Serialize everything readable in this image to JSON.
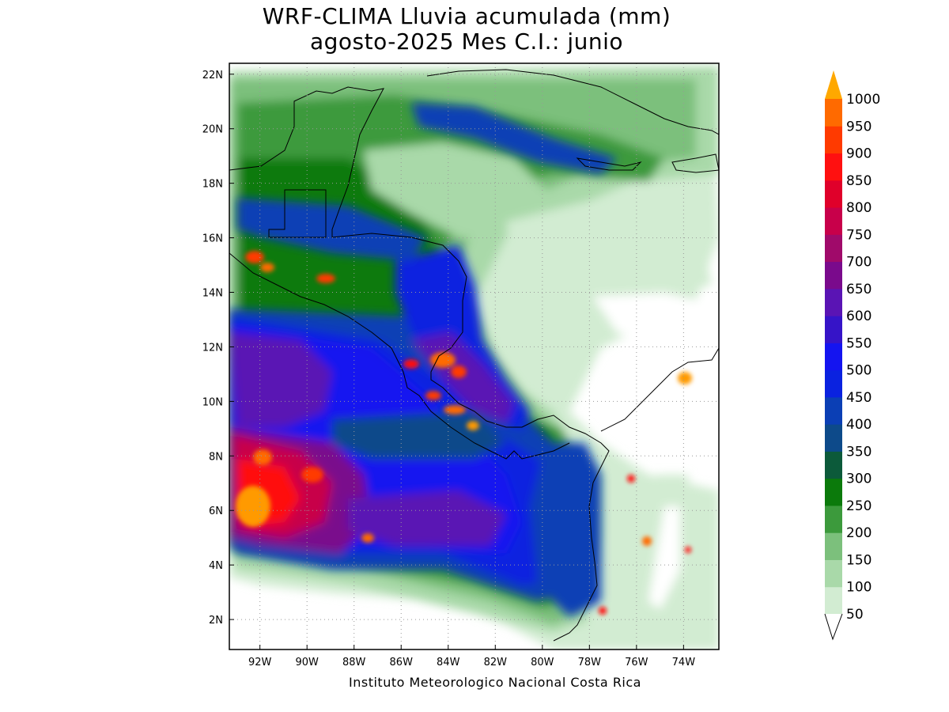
{
  "title": {
    "line1": "WRF-CLIMA Lluvia acumulada (mm)",
    "line2": "agosto-2025 Mes C.I.: junio"
  },
  "credit": "Instituto Meteorologico Nacional Costa Rica",
  "map": {
    "lon_range": [
      -93.3,
      -72.5
    ],
    "lat_range": [
      0.9,
      22.4
    ],
    "lon_ticks": [
      {
        "value": -92,
        "label": "92W"
      },
      {
        "value": -90,
        "label": "90W"
      },
      {
        "value": -88,
        "label": "88W"
      },
      {
        "value": -86,
        "label": "86W"
      },
      {
        "value": -84,
        "label": "84W"
      },
      {
        "value": -82,
        "label": "82W"
      },
      {
        "value": -80,
        "label": "80W"
      },
      {
        "value": -78,
        "label": "78W"
      },
      {
        "value": -76,
        "label": "76W"
      },
      {
        "value": -74,
        "label": "74W"
      }
    ],
    "lat_ticks": [
      {
        "value": 2,
        "label": "2N"
      },
      {
        "value": 4,
        "label": "4N"
      },
      {
        "value": 6,
        "label": "6N"
      },
      {
        "value": 8,
        "label": "8N"
      },
      {
        "value": 10,
        "label": "10N"
      },
      {
        "value": 12,
        "label": "12N"
      },
      {
        "value": 14,
        "label": "14N"
      },
      {
        "value": 16,
        "label": "16N"
      },
      {
        "value": 18,
        "label": "18N"
      },
      {
        "value": 20,
        "label": "20N"
      },
      {
        "value": 22,
        "label": "22N"
      }
    ],
    "grid": true
  },
  "colorbar": {
    "levels": [
      {
        "value": "50",
        "color": "#d2ecd2"
      },
      {
        "value": "100",
        "color": "#a9d9a9"
      },
      {
        "value": "150",
        "color": "#7cc07c"
      },
      {
        "value": "200",
        "color": "#3c9a3c"
      },
      {
        "value": "250",
        "color": "#0b7a0b"
      },
      {
        "value": "300",
        "color": "#0c5a3a"
      },
      {
        "value": "350",
        "color": "#0d4a8a"
      },
      {
        "value": "400",
        "color": "#0b3fb5"
      },
      {
        "value": "450",
        "color": "#0a22e0"
      },
      {
        "value": "500",
        "color": "#1414f0"
      },
      {
        "value": "550",
        "color": "#3614c8"
      },
      {
        "value": "600",
        "color": "#5a14b4"
      },
      {
        "value": "650",
        "color": "#7a0a8c"
      },
      {
        "value": "700",
        "color": "#a00a6a"
      },
      {
        "value": "750",
        "color": "#c8004a"
      },
      {
        "value": "800",
        "color": "#e0002a"
      },
      {
        "value": "850",
        "color": "#ff1010"
      },
      {
        "value": "900",
        "color": "#ff3a00"
      },
      {
        "value": "950",
        "color": "#ff6a00"
      },
      {
        "value": "1000",
        "color": "#ff9a00"
      }
    ],
    "over_color": "#ffa800"
  }
}
